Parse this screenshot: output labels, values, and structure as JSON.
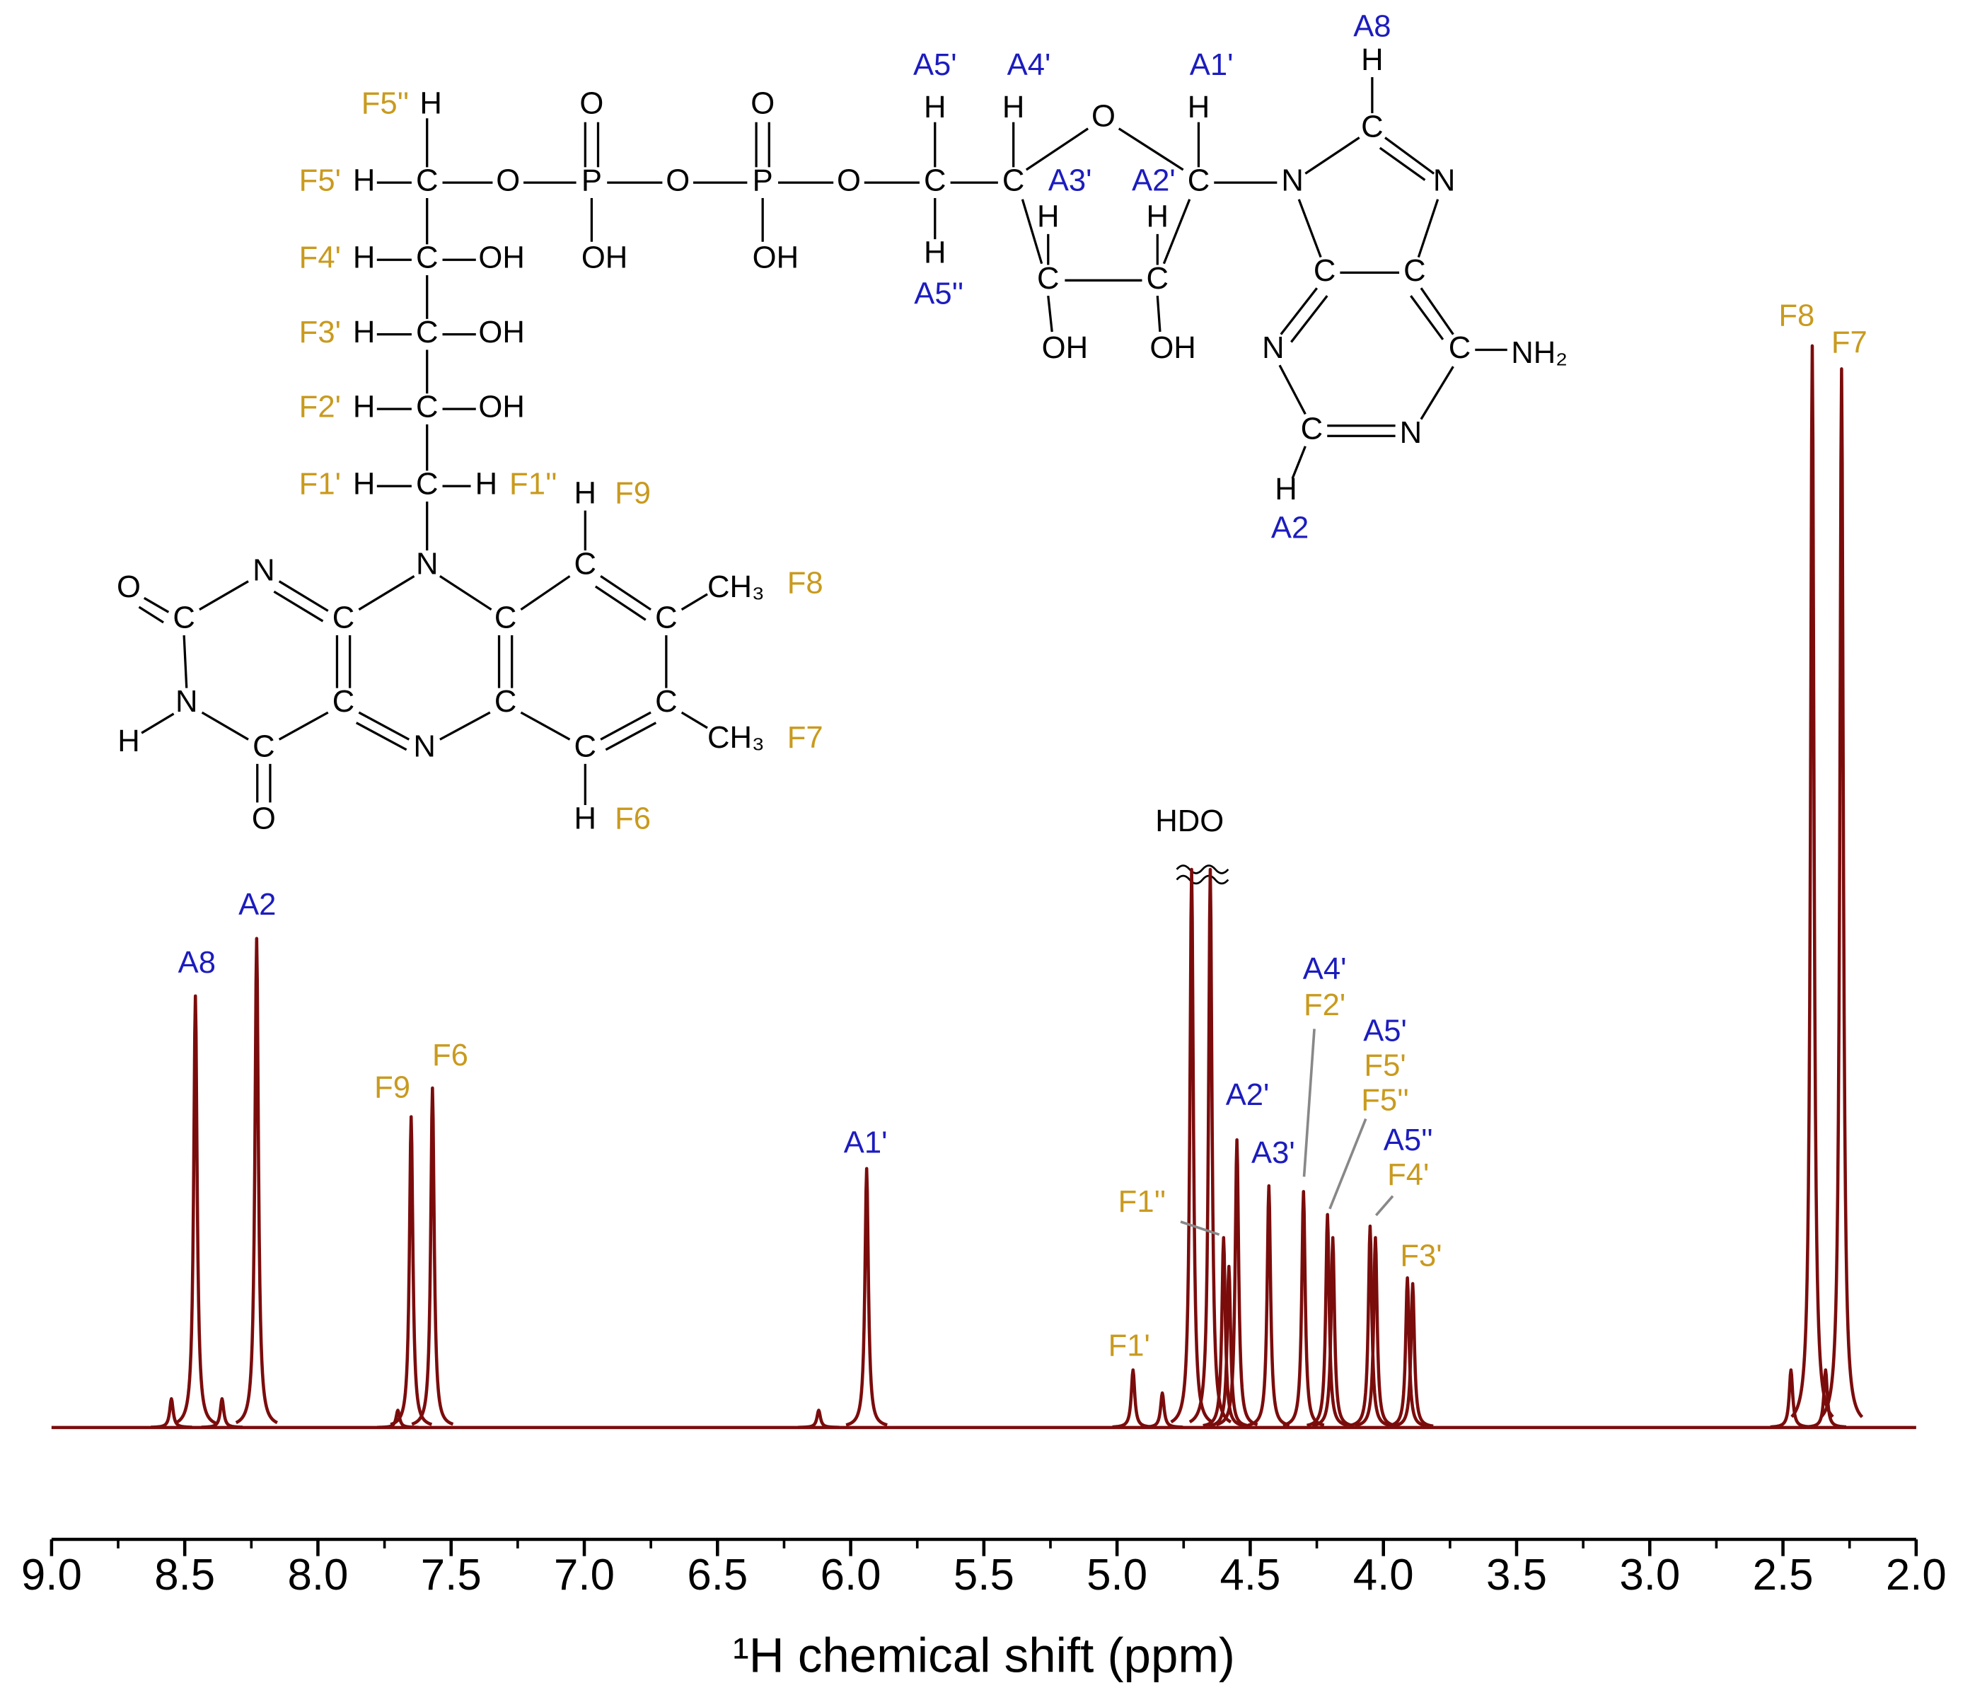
{
  "chart_data": {
    "type": "spectrum",
    "xlabel": "¹H chemical shift (ppm)",
    "xlim": [
      9,
      2
    ],
    "xticks": [
      {
        "value": 9,
        "label": "9.0"
      },
      {
        "value": 8.5,
        "label": "8.5"
      },
      {
        "value": 8,
        "label": "8.0"
      },
      {
        "value": 7.5,
        "label": "7.5"
      },
      {
        "value": 7,
        "label": "7.0"
      },
      {
        "value": 6.5,
        "label": "6.5"
      },
      {
        "value": 6,
        "label": "6.0"
      },
      {
        "value": 5.5,
        "label": "5.5"
      },
      {
        "value": 5,
        "label": "5.0"
      },
      {
        "value": 4.5,
        "label": "4.5"
      },
      {
        "value": 4,
        "label": "4.0"
      },
      {
        "value": 3.5,
        "label": "3.5"
      },
      {
        "value": 3,
        "label": "3.0"
      },
      {
        "value": 2.5,
        "label": "2.5"
      },
      {
        "value": 2,
        "label": "2.0"
      }
    ],
    "xminorticks": [
      8.75,
      8.25,
      7.75,
      7.25,
      6.75,
      6.25,
      5.75,
      5.25,
      4.75,
      4.25,
      3.75,
      3.25,
      2.75,
      2.25
    ],
    "ylim": [
      0,
      190
    ],
    "color": "#7b0c0c",
    "x": [
      8.55,
      8.46,
      8.36,
      8.23,
      7.7,
      7.65,
      7.57,
      6.12,
      5.94,
      4.94,
      4.83,
      4.72,
      4.65,
      4.6,
      4.58,
      4.55,
      4.43,
      4.3,
      4.21,
      4.19,
      4.05,
      4.03,
      3.91,
      3.89,
      2.47,
      2.39,
      2.34,
      2.28
    ],
    "values": [
      5,
      75,
      5,
      85,
      3,
      54,
      59,
      3,
      45,
      10,
      6,
      97,
      97,
      33,
      28,
      50,
      42,
      41,
      37,
      33,
      35,
      33,
      26,
      25,
      10,
      188,
      10,
      184
    ],
    "peak_labels": [
      {
        "text": "A8",
        "color": "#1c1cbf"
      },
      {
        "text": "A2",
        "color": "#1c1cbf"
      },
      {
        "text": "F9",
        "color": "#c99a1e"
      },
      {
        "text": "F6",
        "color": "#c99a1e"
      },
      {
        "text": "A1'",
        "color": "#1c1cbf"
      },
      {
        "text": "HDO",
        "color": "#000000"
      },
      {
        "text": "A2'",
        "color": "#1c1cbf"
      },
      {
        "text": "A3'",
        "color": "#1c1cbf"
      },
      {
        "text": "A4'",
        "color": "#1c1cbf"
      },
      {
        "text": "F2'",
        "color": "#c99a1e"
      },
      {
        "text": "A5'",
        "color": "#1c1cbf"
      },
      {
        "text": "F5'",
        "color": "#c99a1e"
      },
      {
        "text": "F5''",
        "color": "#c99a1e"
      },
      {
        "text": "A5''",
        "color": "#1c1cbf"
      },
      {
        "text": "F4'",
        "color": "#c99a1e"
      },
      {
        "text": "F3'",
        "color": "#c99a1e"
      },
      {
        "text": "F1''",
        "color": "#c99a1e"
      },
      {
        "text": "F1'",
        "color": "#c99a1e"
      },
      {
        "text": "F8",
        "color": "#c99a1e"
      },
      {
        "text": "F7",
        "color": "#c99a1e"
      }
    ]
  },
  "structure": {
    "atoms": [
      "H",
      "H",
      "C",
      "O",
      "P",
      "O",
      "P",
      "O",
      "C",
      "C",
      "O",
      "O",
      "OH",
      "OH",
      "H",
      "C",
      "OH",
      "H",
      "C",
      "OH",
      "H",
      "C",
      "OH",
      "H",
      "C",
      "H",
      "N",
      "O",
      "C",
      "N",
      "C",
      "N",
      "H",
      "C",
      "O",
      "C",
      "N",
      "C",
      "C",
      "C",
      "H",
      "C",
      "CH₃",
      "C",
      "CH₃",
      "C",
      "H",
      "H",
      "H",
      "H",
      "O",
      "H",
      "C",
      "H",
      "H",
      "C",
      "C",
      "OH",
      "OH",
      "N",
      "H",
      "C",
      "N",
      "C",
      "C",
      "C",
      "NH₂",
      "N",
      "C",
      "N",
      "H"
    ],
    "labels": [
      {
        "text": "F5''",
        "color": "#c99a1e"
      },
      {
        "text": "F5'",
        "color": "#c99a1e"
      },
      {
        "text": "F4'",
        "color": "#c99a1e"
      },
      {
        "text": "F3'",
        "color": "#c99a1e"
      },
      {
        "text": "F2'",
        "color": "#c99a1e"
      },
      {
        "text": "F1'",
        "color": "#c99a1e"
      },
      {
        "text": "F1''",
        "color": "#c99a1e"
      },
      {
        "text": "F9",
        "color": "#c99a1e"
      },
      {
        "text": "F8",
        "color": "#c99a1e"
      },
      {
        "text": "F7",
        "color": "#c99a1e"
      },
      {
        "text": "F6",
        "color": "#c99a1e"
      },
      {
        "text": "A5'",
        "color": "#1c1cbf"
      },
      {
        "text": "A5''",
        "color": "#1c1cbf"
      },
      {
        "text": "A4'",
        "color": "#1c1cbf"
      },
      {
        "text": "A3'",
        "color": "#1c1cbf"
      },
      {
        "text": "A2'",
        "color": "#1c1cbf"
      },
      {
        "text": "A1'",
        "color": "#1c1cbf"
      },
      {
        "text": "A8",
        "color": "#1c1cbf"
      },
      {
        "text": "A2",
        "color": "#1c1cbf"
      }
    ]
  }
}
